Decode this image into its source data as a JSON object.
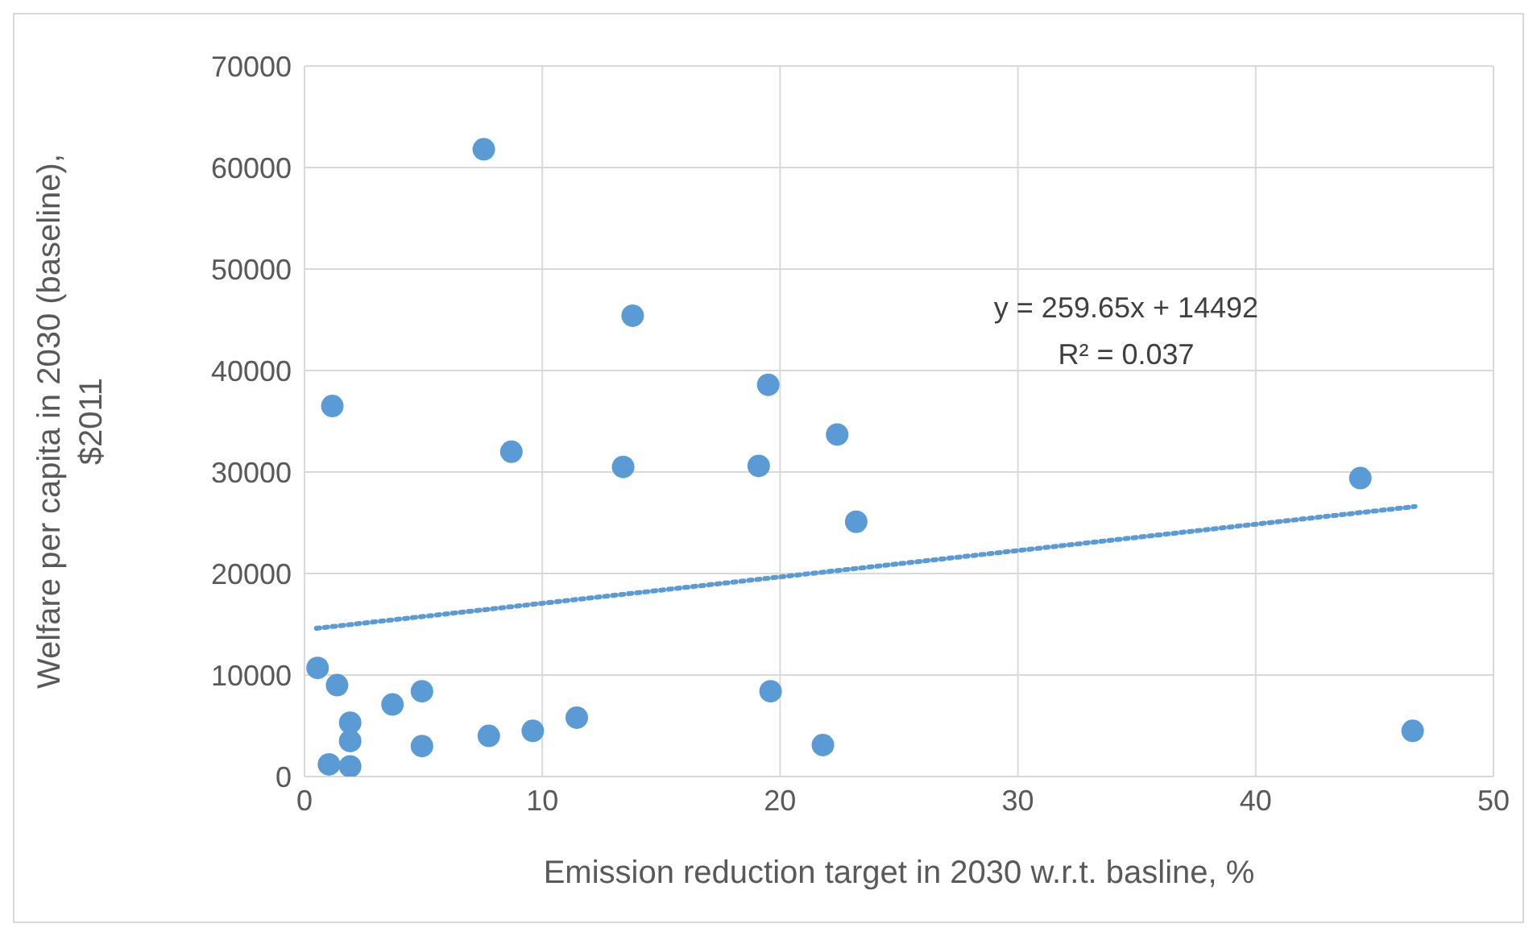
{
  "chart_data": {
    "type": "scatter",
    "xlabel": "Emission reduction target in 2030 w.r.t. basline, %",
    "ylabel": "Welfare per capita in 2030 (baseline), $2011",
    "xlim": [
      0,
      50
    ],
    "xticks": [
      0,
      10,
      20,
      30,
      40,
      50
    ],
    "ylim": [
      0,
      70000
    ],
    "yticks": [
      0,
      10000,
      20000,
      30000,
      40000,
      50000,
      60000,
      70000
    ],
    "grid": true,
    "marker": "circle",
    "annotations": [
      "y = 259.65x + 14492",
      "R² = 0.037"
    ],
    "series": [
      {
        "color": "#5b9bd5",
        "x": [
          0.55,
          1.17,
          1.03,
          1.37,
          1.92,
          1.92,
          1.92,
          3.7,
          4.94,
          4.94,
          7.54,
          7.75,
          8.7,
          9.6,
          11.45,
          13.4,
          13.8,
          19.1,
          19.5,
          19.6,
          21.8,
          22.4,
          23.2,
          44.4,
          46.6
        ],
        "values": [
          10700,
          36500,
          1200,
          9000,
          5300,
          3500,
          1000,
          7100,
          8400,
          3000,
          61800,
          4000,
          32000,
          4500,
          5800,
          30500,
          45400,
          30600,
          38600,
          8400,
          3100,
          33700,
          25100,
          29400,
          4500
        ]
      },
      {
        "type": "line",
        "color": "#5b9bd5",
        "line_style": "dotted",
        "marker": "none",
        "x": [
          0.5,
          46.7
        ],
        "values": [
          14600,
          26600
        ]
      }
    ]
  }
}
